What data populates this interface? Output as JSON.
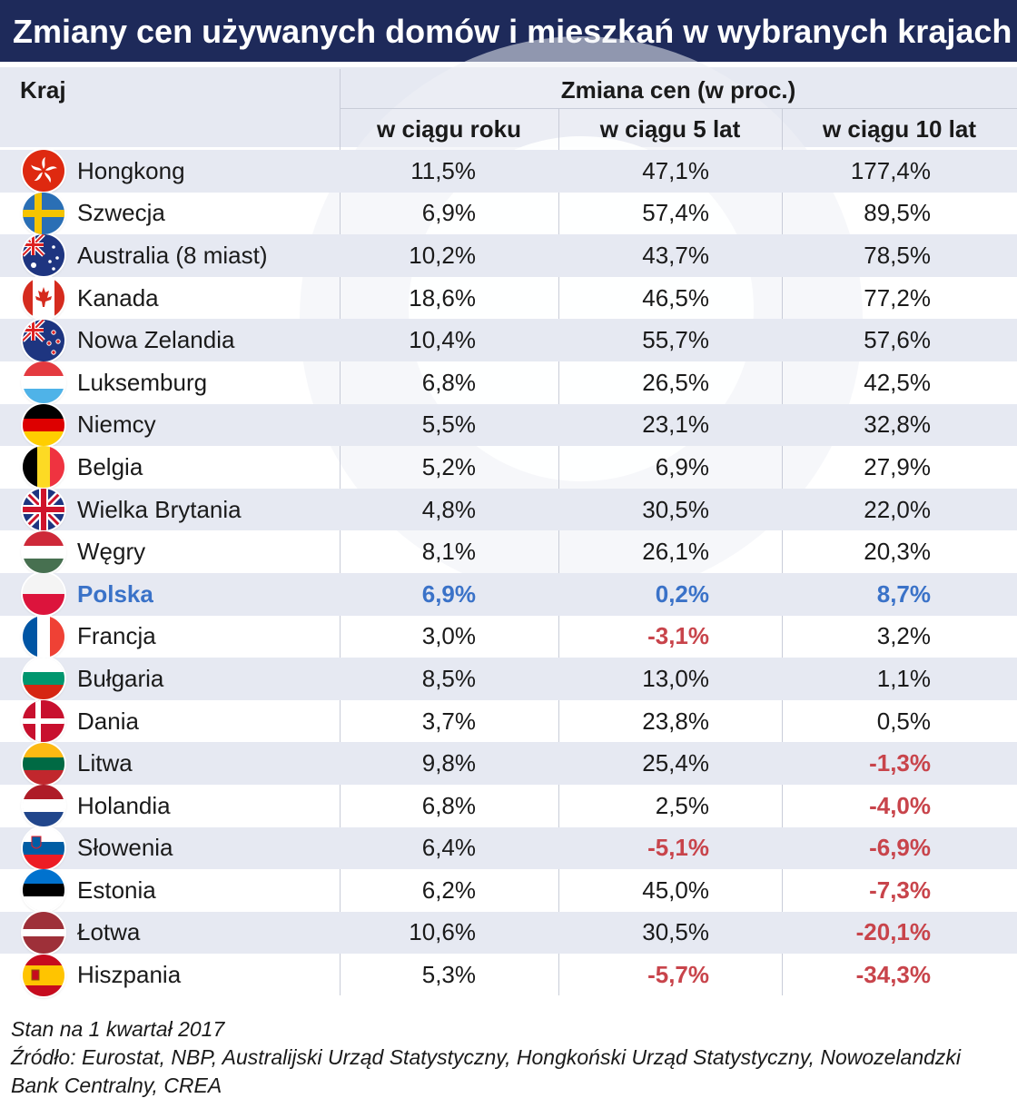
{
  "title": "Zmiany cen używanych domów i mieszkań w wybranych krajach",
  "header": {
    "country": "Kraj",
    "change_group": "Zmiana cen (w proc.)",
    "col_1y": "w ciągu roku",
    "col_5y": "w ciągu 5 lat",
    "col_10y": "w ciągu 10 lat"
  },
  "chart_data": {
    "type": "table",
    "columns": [
      "Kraj",
      "w ciągu roku",
      "w ciągu 5 lat",
      "w ciągu 10 lat"
    ],
    "rows": [
      {
        "country": "Hongkong",
        "flag": "hong-kong-flag-icon",
        "y1": "11,5%",
        "y5": "47,1%",
        "y10": "177,4%"
      },
      {
        "country": "Szwecja",
        "flag": "sweden-flag-icon",
        "y1": "6,9%",
        "y5": "57,4%",
        "y10": "89,5%"
      },
      {
        "country": "Australia (8 miast)",
        "flag": "australia-flag-icon",
        "y1": "10,2%",
        "y5": "43,7%",
        "y10": "78,5%"
      },
      {
        "country": "Kanada",
        "flag": "canada-flag-icon",
        "y1": "18,6%",
        "y5": "46,5%",
        "y10": "77,2%"
      },
      {
        "country": "Nowa Zelandia",
        "flag": "new-zealand-flag-icon",
        "y1": "10,4%",
        "y5": "55,7%",
        "y10": "57,6%"
      },
      {
        "country": "Luksemburg",
        "flag": "luxembourg-flag-icon",
        "y1": "6,8%",
        "y5": "26,5%",
        "y10": "42,5%"
      },
      {
        "country": "Niemcy",
        "flag": "germany-flag-icon",
        "y1": "5,5%",
        "y5": "23,1%",
        "y10": "32,8%"
      },
      {
        "country": "Belgia",
        "flag": "belgium-flag-icon",
        "y1": "5,2%",
        "y5": "6,9%",
        "y10": "27,9%"
      },
      {
        "country": "Wielka Brytania",
        "flag": "uk-flag-icon",
        "y1": "4,8%",
        "y5": "30,5%",
        "y10": "22,0%"
      },
      {
        "country": "Węgry",
        "flag": "hungary-flag-icon",
        "y1": "8,1%",
        "y5": "26,1%",
        "y10": "20,3%"
      },
      {
        "country": "Polska",
        "flag": "poland-flag-icon",
        "y1": "6,9%",
        "y5": "0,2%",
        "y10": "8,7%",
        "highlight": true
      },
      {
        "country": "Francja",
        "flag": "france-flag-icon",
        "y1": "3,0%",
        "y5": "-3,1%",
        "y10": "3,2%"
      },
      {
        "country": "Bułgaria",
        "flag": "bulgaria-flag-icon",
        "y1": "8,5%",
        "y5": "13,0%",
        "y10": "1,1%"
      },
      {
        "country": "Dania",
        "flag": "denmark-flag-icon",
        "y1": "3,7%",
        "y5": "23,8%",
        "y10": "0,5%"
      },
      {
        "country": "Litwa",
        "flag": "lithuania-flag-icon",
        "y1": "9,8%",
        "y5": "25,4%",
        "y10": "-1,3%"
      },
      {
        "country": "Holandia",
        "flag": "netherlands-flag-icon",
        "y1": "6,8%",
        "y5": "2,5%",
        "y10": "-4,0%"
      },
      {
        "country": "Słowenia",
        "flag": "slovenia-flag-icon",
        "y1": "6,4%",
        "y5": "-5,1%",
        "y10": "-6,9%"
      },
      {
        "country": "Estonia",
        "flag": "estonia-flag-icon",
        "y1": "6,2%",
        "y5": "45,0%",
        "y10": "-7,3%"
      },
      {
        "country": "Łotwa",
        "flag": "latvia-flag-icon",
        "y1": "10,6%",
        "y5": "30,5%",
        "y10": "-20,1%"
      },
      {
        "country": "Hiszpania",
        "flag": "spain-flag-icon",
        "y1": "5,3%",
        "y5": "-5,7%",
        "y10": "-34,3%"
      }
    ]
  },
  "colors": {
    "title_bg": "#1e2a5a",
    "highlight": "#3a72c8",
    "negative": "#c8444b",
    "row_shade": "#e6e9f2"
  },
  "footer": {
    "as_of": "Stan na 1 kwartał 2017",
    "source": "Źródło: Eurostat, NBP, Australijski Urząd Statystyczny, Hongkoński Urząd Statystyczny, Nowozelandzki Bank Centralny, CREA"
  }
}
